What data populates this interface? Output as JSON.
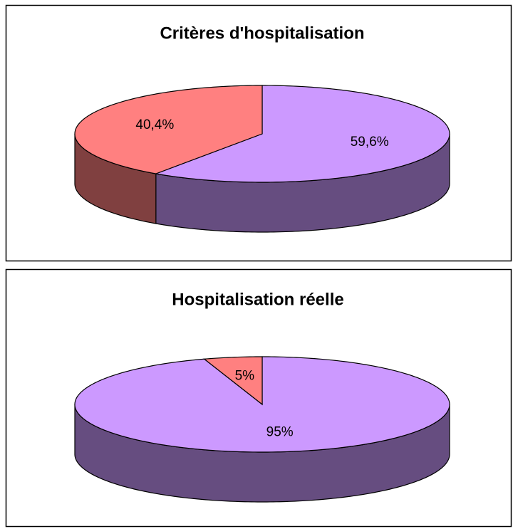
{
  "chart_data": [
    {
      "type": "pie3d",
      "title": "Critères d'hospitalisation",
      "values": [
        59.6,
        40.4
      ],
      "value_labels": [
        "59,6%",
        "40,4%"
      ],
      "colors": [
        "#cc99ff",
        "#ff8080"
      ],
      "side_colors": [
        "#664d80",
        "#804040"
      ]
    },
    {
      "type": "pie3d",
      "title": "Hospitalisation réelle",
      "values": [
        95,
        5
      ],
      "value_labels": [
        "95%",
        "5%"
      ],
      "colors": [
        "#cc99ff",
        "#ff8080"
      ],
      "side_colors": [
        "#664d80",
        "#804040"
      ]
    }
  ]
}
